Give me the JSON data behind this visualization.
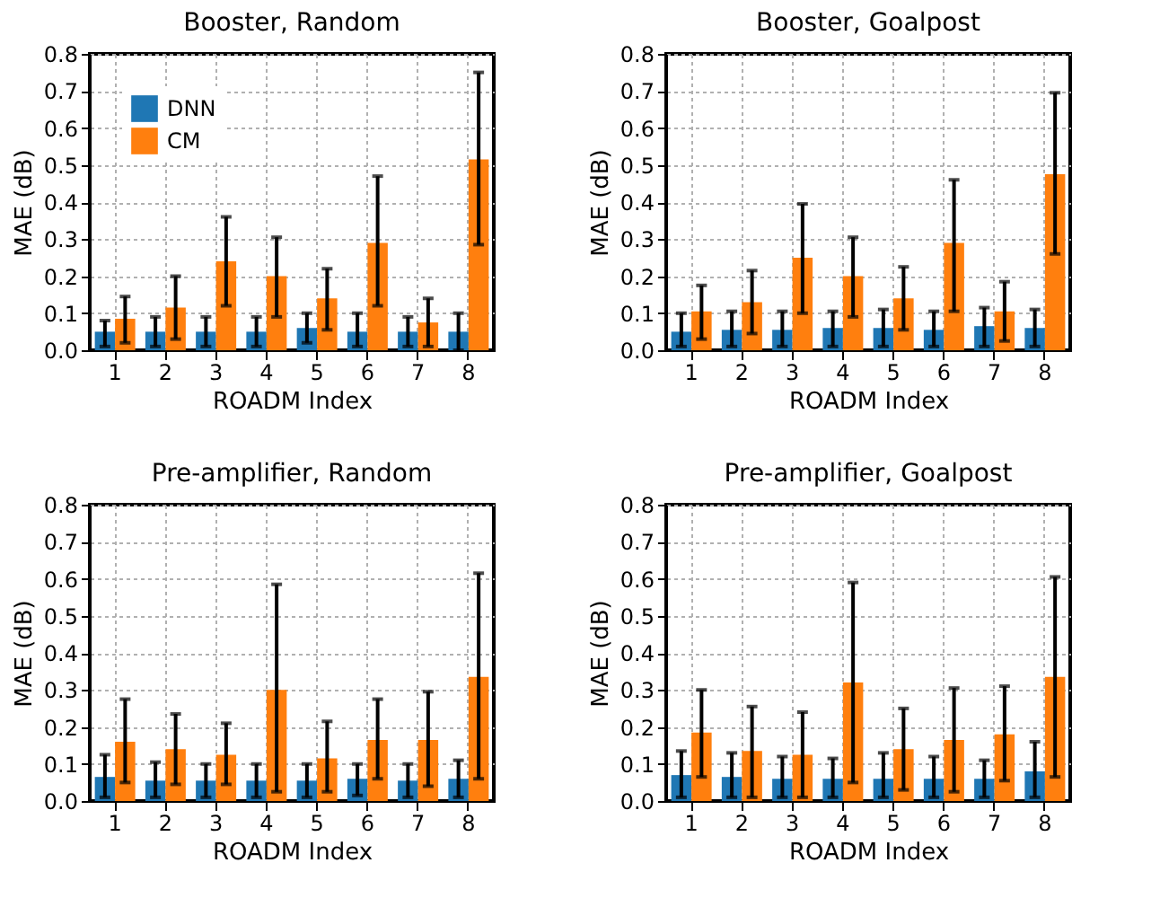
{
  "chart_data": [
    {
      "type": "bar",
      "title": "Booster, Random",
      "xlabel": "ROADM Index",
      "ylabel": "MAE (dB)",
      "categories": [
        "1",
        "2",
        "3",
        "4",
        "5",
        "6",
        "7",
        "8"
      ],
      "ylim": [
        0,
        0.8
      ],
      "yticks": [
        {
          "value": 0,
          "label": "0.0"
        },
        {
          "value": 0.1,
          "label": "0.1"
        },
        {
          "value": 0.2,
          "label": "0.2"
        },
        {
          "value": 0.3,
          "label": "0.3"
        },
        {
          "value": 0.4,
          "label": "0.4"
        },
        {
          "value": 0.5,
          "label": "0.5"
        },
        {
          "value": 0.6,
          "label": "0.6"
        },
        {
          "value": 0.7,
          "label": "0.7"
        },
        {
          "value": 0.8,
          "label": "0.8"
        }
      ],
      "grid": true,
      "legend": "top left",
      "series": [
        {
          "name": "DNN",
          "color": "#1f77b4",
          "values": [
            0.05,
            0.05,
            0.05,
            0.05,
            0.06,
            0.05,
            0.05,
            0.05
          ],
          "errors": [
            [
              0.01,
              0.08
            ],
            [
              0.01,
              0.09
            ],
            [
              0.01,
              0.09
            ],
            [
              0.01,
              0.09
            ],
            [
              0.02,
              0.1
            ],
            [
              0.01,
              0.1
            ],
            [
              0.01,
              0.09
            ],
            [
              0.0,
              0.1
            ]
          ]
        },
        {
          "name": "CM",
          "color": "#ff7f0e",
          "values": [
            0.085,
            0.115,
            0.24,
            0.2,
            0.14,
            0.29,
            0.075,
            0.515
          ],
          "errors": [
            [
              0.02,
              0.145
            ],
            [
              0.03,
              0.2
            ],
            [
              0.12,
              0.36
            ],
            [
              0.09,
              0.305
            ],
            [
              0.055,
              0.22
            ],
            [
              0.12,
              0.47
            ],
            [
              0.01,
              0.14
            ],
            [
              0.285,
              0.75
            ]
          ]
        }
      ]
    },
    {
      "type": "bar",
      "title": "Booster, Goalpost",
      "xlabel": "ROADM Index",
      "ylabel": "MAE (dB)",
      "categories": [
        "1",
        "2",
        "3",
        "4",
        "5",
        "6",
        "7",
        "8"
      ],
      "ylim": [
        0,
        0.8
      ],
      "yticks": [
        {
          "value": 0,
          "label": "0.0"
        },
        {
          "value": 0.1,
          "label": "0.1"
        },
        {
          "value": 0.2,
          "label": "0.2"
        },
        {
          "value": 0.3,
          "label": "0.3"
        },
        {
          "value": 0.4,
          "label": "0.4"
        },
        {
          "value": 0.5,
          "label": "0.5"
        },
        {
          "value": 0.6,
          "label": "0.6"
        },
        {
          "value": 0.7,
          "label": "0.7"
        },
        {
          "value": 0.8,
          "label": "0.8"
        }
      ],
      "grid": true,
      "legend": "top left",
      "series": [
        {
          "name": "DNN",
          "color": "#1f77b4",
          "values": [
            0.05,
            0.055,
            0.055,
            0.06,
            0.06,
            0.055,
            0.065,
            0.06
          ],
          "errors": [
            [
              0.01,
              0.1
            ],
            [
              0.01,
              0.105
            ],
            [
              0.01,
              0.105
            ],
            [
              0.01,
              0.105
            ],
            [
              0.01,
              0.11
            ],
            [
              0.01,
              0.105
            ],
            [
              0.01,
              0.115
            ],
            [
              0.01,
              0.11
            ]
          ]
        },
        {
          "name": "CM",
          "color": "#ff7f0e",
          "values": [
            0.105,
            0.13,
            0.25,
            0.2,
            0.14,
            0.29,
            0.105,
            0.475
          ],
          "errors": [
            [
              0.03,
              0.175
            ],
            [
              0.045,
              0.215
            ],
            [
              0.1,
              0.395
            ],
            [
              0.09,
              0.305
            ],
            [
              0.055,
              0.225
            ],
            [
              0.105,
              0.46
            ],
            [
              0.025,
              0.185
            ],
            [
              0.26,
              0.695
            ]
          ]
        }
      ]
    },
    {
      "type": "bar",
      "title": "Pre-amplifier, Random",
      "xlabel": "ROADM Index",
      "ylabel": "MAE (dB)",
      "categories": [
        "1",
        "2",
        "3",
        "4",
        "5",
        "6",
        "7",
        "8"
      ],
      "ylim": [
        0,
        0.8
      ],
      "yticks": [
        {
          "value": 0,
          "label": "0.0"
        },
        {
          "value": 0.1,
          "label": "0.1"
        },
        {
          "value": 0.2,
          "label": "0.2"
        },
        {
          "value": 0.3,
          "label": "0.3"
        },
        {
          "value": 0.4,
          "label": "0.4"
        },
        {
          "value": 0.5,
          "label": "0.5"
        },
        {
          "value": 0.6,
          "label": "0.6"
        },
        {
          "value": 0.7,
          "label": "0.7"
        },
        {
          "value": 0.8,
          "label": "0.8"
        }
      ],
      "grid": true,
      "legend": "top left",
      "series": [
        {
          "name": "DNN",
          "color": "#1f77b4",
          "values": [
            0.065,
            0.055,
            0.055,
            0.055,
            0.055,
            0.06,
            0.055,
            0.06
          ],
          "errors": [
            [
              0.01,
              0.125
            ],
            [
              0.01,
              0.105
            ],
            [
              0.01,
              0.1
            ],
            [
              0.01,
              0.1
            ],
            [
              0.01,
              0.1
            ],
            [
              0.015,
              0.1
            ],
            [
              0.01,
              0.1
            ],
            [
              0.01,
              0.11
            ]
          ]
        },
        {
          "name": "CM",
          "color": "#ff7f0e",
          "values": [
            0.16,
            0.14,
            0.125,
            0.3,
            0.115,
            0.165,
            0.165,
            0.335
          ],
          "errors": [
            [
              0.05,
              0.275
            ],
            [
              0.045,
              0.235
            ],
            [
              0.045,
              0.21
            ],
            [
              0.025,
              0.585
            ],
            [
              0.025,
              0.215
            ],
            [
              0.06,
              0.275
            ],
            [
              0.04,
              0.295
            ],
            [
              0.06,
              0.615
            ]
          ]
        }
      ]
    },
    {
      "type": "bar",
      "title": "Pre-amplifier, Goalpost",
      "xlabel": "ROADM Index",
      "ylabel": "MAE (dB)",
      "categories": [
        "1",
        "2",
        "3",
        "4",
        "5",
        "6",
        "7",
        "8"
      ],
      "ylim": [
        0,
        0.8
      ],
      "yticks": [
        {
          "value": 0,
          "label": "0.0"
        },
        {
          "value": 0.1,
          "label": "0.1"
        },
        {
          "value": 0.2,
          "label": "0.2"
        },
        {
          "value": 0.3,
          "label": "0.3"
        },
        {
          "value": 0.4,
          "label": "0.4"
        },
        {
          "value": 0.5,
          "label": "0.5"
        },
        {
          "value": 0.6,
          "label": "0.6"
        },
        {
          "value": 0.7,
          "label": "0.7"
        },
        {
          "value": 0.8,
          "label": "0.8"
        }
      ],
      "grid": true,
      "legend": "top left",
      "series": [
        {
          "name": "DNN",
          "color": "#1f77b4",
          "values": [
            0.07,
            0.065,
            0.06,
            0.06,
            0.06,
            0.06,
            0.06,
            0.08
          ],
          "errors": [
            [
              0.01,
              0.135
            ],
            [
              0.01,
              0.13
            ],
            [
              0.01,
              0.12
            ],
            [
              0.01,
              0.115
            ],
            [
              0.01,
              0.13
            ],
            [
              0.01,
              0.12
            ],
            [
              0.01,
              0.11
            ],
            [
              0.01,
              0.16
            ]
          ]
        },
        {
          "name": "CM",
          "color": "#ff7f0e",
          "values": [
            0.185,
            0.135,
            0.125,
            0.32,
            0.14,
            0.165,
            0.18,
            0.335
          ],
          "errors": [
            [
              0.065,
              0.3
            ],
            [
              0.01,
              0.255
            ],
            [
              0.01,
              0.24
            ],
            [
              0.05,
              0.59
            ],
            [
              0.03,
              0.25
            ],
            [
              0.025,
              0.305
            ],
            [
              0.055,
              0.31
            ],
            [
              0.065,
              0.605
            ]
          ]
        }
      ]
    }
  ]
}
